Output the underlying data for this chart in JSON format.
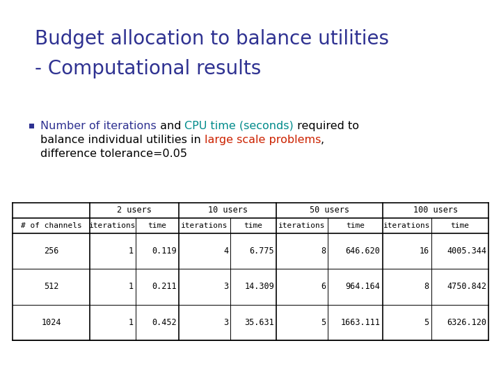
{
  "title_line1": "Budget allocation to balance utilities",
  "title_line2": "- Computational results",
  "title_color": "#2E3191",
  "title_fontsize": 20,
  "bg_color": "#FFFFFF",
  "bullet_color": "#2E3191",
  "line1_segments": [
    [
      "Number of iterations",
      "#2E3191"
    ],
    [
      " and ",
      "#000000"
    ],
    [
      "CPU time (seconds)",
      "#008B8B"
    ],
    [
      " required to",
      "#000000"
    ]
  ],
  "line2_segments": [
    [
      "balance individual utilities in ",
      "#000000"
    ],
    [
      "large scale problems",
      "#CC2200"
    ],
    [
      ",",
      "#000000"
    ]
  ],
  "line3_segments": [
    [
      "difference tolerance=0.05",
      "#000000"
    ]
  ],
  "bullet_text_fontsize": 11.5,
  "table_header_row1": [
    "2 users",
    "10 users",
    "50 users",
    "100 users"
  ],
  "table_header_row2": [
    "# of channels",
    "iterations",
    "time",
    "iterations",
    "time",
    "iterations",
    "time",
    "iterations",
    "time"
  ],
  "table_data": [
    [
      "256",
      "1",
      "0.119",
      "4",
      "6.775",
      "8",
      "646.620",
      "16",
      "4005.344"
    ],
    [
      "512",
      "1",
      "0.211",
      "3",
      "14.309",
      "6",
      "964.164",
      "8",
      "4750.842"
    ],
    [
      "1024",
      "1",
      "0.452",
      "3",
      "35.631",
      "5",
      "1663.111",
      "5",
      "6326.120"
    ]
  ],
  "table_fontsize": 8.5
}
